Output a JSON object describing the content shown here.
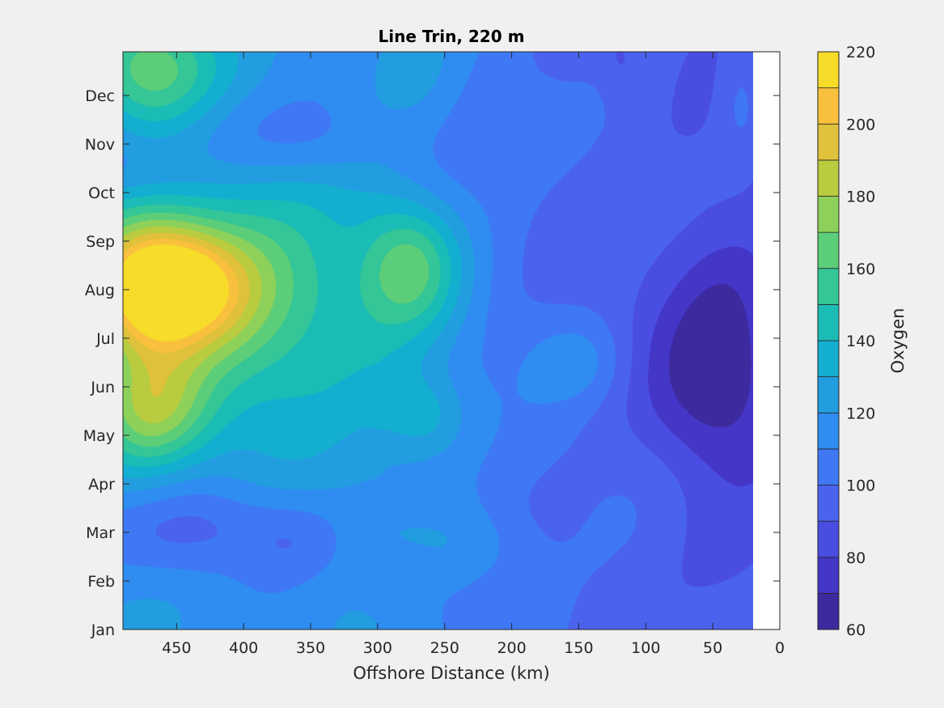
{
  "chart_data": {
    "type": "contour",
    "title": "Line Trin, 220 m",
    "xlabel": "Offshore Distance (km)",
    "ylabel": "",
    "x_ticks": [
      450,
      400,
      350,
      300,
      250,
      200,
      150,
      100,
      50,
      0
    ],
    "x_axis_reversed": true,
    "xlim": [
      490,
      0
    ],
    "y_ticks": [
      "Jan",
      "Feb",
      "Mar",
      "Apr",
      "May",
      "Jun",
      "Jul",
      "Aug",
      "Sep",
      "Oct",
      "Nov",
      "Dec"
    ],
    "data_x_extent": [
      490,
      20
    ],
    "colorbar": {
      "label": "Oxygen",
      "ticks": [
        60,
        80,
        100,
        120,
        140,
        160,
        180,
        200,
        220
      ],
      "range": [
        60,
        220
      ],
      "levels": [
        60,
        70,
        80,
        90,
        100,
        110,
        120,
        130,
        140,
        150,
        160,
        170,
        180,
        190,
        200,
        210,
        220
      ],
      "colors": [
        "#3d2a9e",
        "#4436c6",
        "#4a4de1",
        "#4a63ef",
        "#3f78f5",
        "#2f8cf0",
        "#229de0",
        "#14aed0",
        "#1bbcb5",
        "#34c697",
        "#5ccd78",
        "#8ed15a",
        "#b9cb3e",
        "#e0c13b",
        "#f8c03c",
        "#f7dc2a"
      ]
    },
    "field_description": "Oxygen concentration (colour fill) vs offshore distance and month; highs (~210-220) near 450-470 km in Aug, lows (~70-80) within 30-80 km in May-Jul."
  },
  "field": {
    "base": 107,
    "gradient": [
      {
        "x": 490,
        "y": 0,
        "v": 118
      },
      {
        "x": 300,
        "y": 0,
        "v": 118
      },
      {
        "x": 200,
        "y": 0,
        "v": 103
      },
      {
        "x": 100,
        "y": 0,
        "v": 96
      },
      {
        "x": 20,
        "y": 0,
        "v": 92
      }
    ],
    "bumps": [
      {
        "x": 460,
        "y": 7.1,
        "sx": 38,
        "sy": 0.85,
        "a": 95
      },
      {
        "x": 410,
        "y": 6.9,
        "sx": 55,
        "sy": 1.6,
        "a": 45
      },
      {
        "x": 480,
        "y": 6.0,
        "sx": 30,
        "sy": 2.6,
        "a": 22
      },
      {
        "x": 465,
        "y": 4.5,
        "sx": 30,
        "sy": 0.8,
        "a": 38
      },
      {
        "x": 470,
        "y": 11.5,
        "sx": 35,
        "sy": 0.9,
        "a": 48
      },
      {
        "x": 275,
        "y": 7.5,
        "sx": 25,
        "sy": 0.9,
        "a": 40
      },
      {
        "x": 320,
        "y": 6.0,
        "sx": 55,
        "sy": 2.0,
        "a": 15
      },
      {
        "x": 265,
        "y": 4.4,
        "sx": 22,
        "sy": 0.6,
        "a": 20
      },
      {
        "x": 150,
        "y": 5.5,
        "sx": 25,
        "sy": 0.6,
        "a": 15
      },
      {
        "x": 225,
        "y": 1.7,
        "sx": 30,
        "sy": 0.6,
        "a": 12
      },
      {
        "x": 420,
        "y": 10.3,
        "sx": 75,
        "sy": 0.7,
        "a": -12
      },
      {
        "x": 340,
        "y": 10.0,
        "sx": 40,
        "sy": 0.6,
        "a": -8
      },
      {
        "x": 480,
        "y": 9.4,
        "sx": 30,
        "sy": 0.5,
        "a": -12
      },
      {
        "x": 440,
        "y": 2.1,
        "sx": 60,
        "sy": 0.7,
        "a": -22
      },
      {
        "x": 360,
        "y": 1.8,
        "sx": 25,
        "sy": 0.6,
        "a": -10
      },
      {
        "x": 290,
        "y": 1.0,
        "sx": 25,
        "sy": 0.5,
        "a": -8
      },
      {
        "x": 55,
        "y": 4.8,
        "sx": 35,
        "sy": 1.3,
        "a": -22
      },
      {
        "x": 40,
        "y": 6.2,
        "sx": 25,
        "sy": 1.2,
        "a": -14
      },
      {
        "x": 60,
        "y": 7.8,
        "sx": 50,
        "sy": 2.0,
        "a": -8
      },
      {
        "x": 155,
        "y": 12.0,
        "sx": 15,
        "sy": 0.5,
        "a": -10
      },
      {
        "x": 120,
        "y": 11.7,
        "sx": 12,
        "sy": 0.6,
        "a": -10
      },
      {
        "x": 270,
        "y": 11.5,
        "sx": 25,
        "sy": 1.0,
        "a": 10
      },
      {
        "x": 30,
        "y": 11.0,
        "sx": 12,
        "sy": 1.0,
        "a": 12
      },
      {
        "x": 40,
        "y": 1.5,
        "sx": 30,
        "sy": 1.0,
        "a": -6
      }
    ]
  }
}
